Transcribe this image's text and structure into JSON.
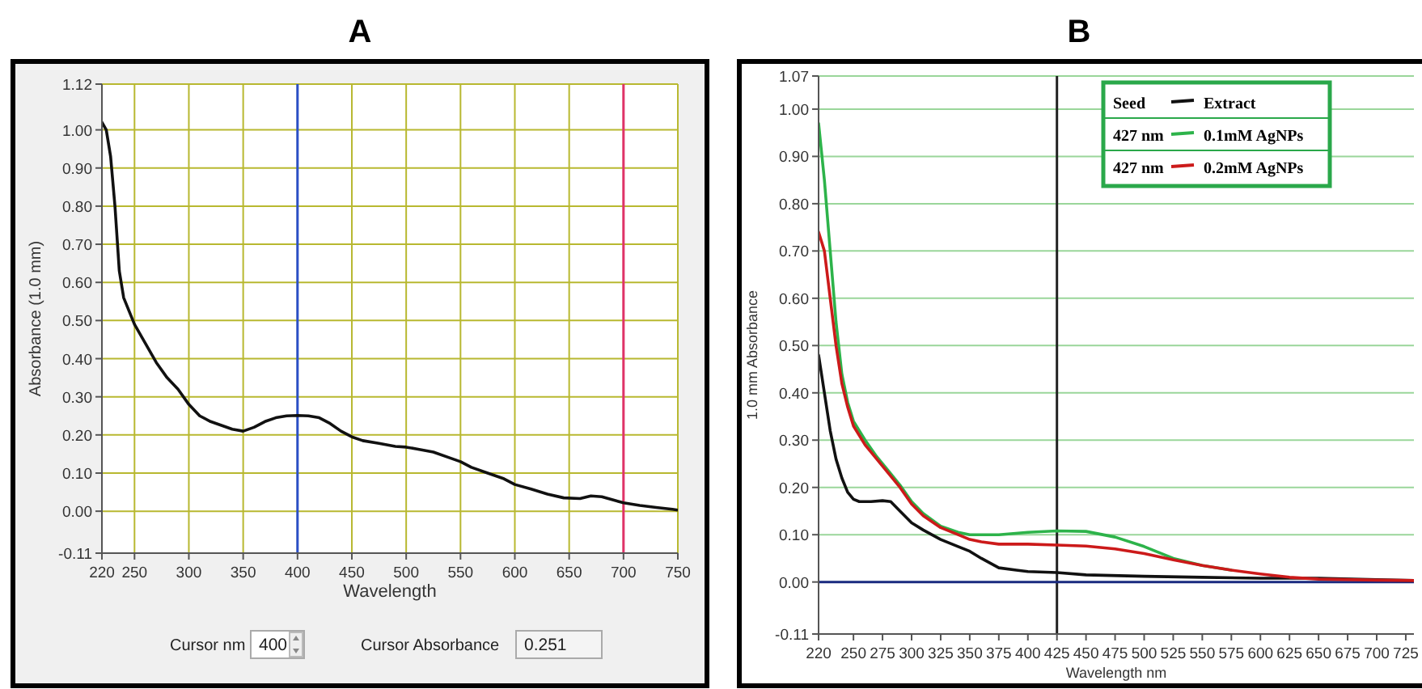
{
  "chart_data": [
    {
      "type": "line",
      "title": "A",
      "xlabel": "Wavelength",
      "ylabel": "Absorbance (1.0 mm)",
      "xlim": [
        220,
        750
      ],
      "xticks": [
        220,
        250,
        300,
        350,
        400,
        450,
        500,
        550,
        600,
        650,
        700,
        750
      ],
      "ylim": [
        -0.11,
        1.12
      ],
      "yticks": [
        -0.11,
        {
          "value": 0,
          "label": "0.00"
        },
        {
          "value": 0.1,
          "label": "0.10"
        },
        {
          "value": 0.2,
          "label": "0.20"
        },
        {
          "value": 0.3,
          "label": "0.30"
        },
        {
          "value": 0.4,
          "label": "0.40"
        },
        {
          "value": 0.5,
          "label": "0.50"
        },
        {
          "value": 0.6,
          "label": "0.60"
        },
        {
          "value": 0.7,
          "label": "0.70"
        },
        {
          "value": 0.8,
          "label": "0.80"
        },
        {
          "value": 0.9,
          "label": "0.90"
        },
        {
          "value": 1,
          "label": "1.00"
        },
        1.12
      ],
      "grid": true,
      "ref_lines": [
        {
          "axis": "x",
          "value": 400,
          "color": "#2a4fc8"
        },
        {
          "axis": "x",
          "value": 700,
          "color": "#e0336a"
        }
      ],
      "annotations": [
        "Cursor nm",
        "400",
        "Cursor Absorbance",
        "0.251"
      ],
      "series": [
        {
          "color": "#111111",
          "x": [
            220,
            224,
            228,
            232,
            236,
            240,
            250,
            260,
            270,
            280,
            290,
            300,
            310,
            320,
            330,
            340,
            350,
            360,
            370,
            380,
            390,
            400,
            410,
            420,
            430,
            440,
            450,
            460,
            475,
            490,
            500,
            510,
            525,
            540,
            550,
            560,
            575,
            590,
            600,
            615,
            630,
            645,
            660,
            670,
            680,
            690,
            700,
            715,
            730,
            745,
            750
          ],
          "values": [
            1.02,
            1.0,
            0.93,
            0.8,
            0.63,
            0.56,
            0.49,
            0.44,
            0.39,
            0.35,
            0.32,
            0.28,
            0.25,
            0.235,
            0.225,
            0.215,
            0.21,
            0.22,
            0.235,
            0.245,
            0.25,
            0.251,
            0.25,
            0.245,
            0.23,
            0.21,
            0.195,
            0.185,
            0.178,
            0.17,
            0.168,
            0.163,
            0.155,
            0.14,
            0.13,
            0.115,
            0.1,
            0.085,
            0.07,
            0.058,
            0.045,
            0.035,
            0.033,
            0.04,
            0.038,
            0.03,
            0.022,
            0.015,
            0.01,
            0.005,
            0.003
          ]
        }
      ]
    },
    {
      "type": "line",
      "title": "B",
      "xlabel": "Wavelength nm",
      "ylabel": "1.0 mm Absorbance",
      "xlim": [
        220,
        732
      ],
      "xticks": [
        220,
        250,
        275,
        300,
        325,
        350,
        375,
        400,
        425,
        450,
        475,
        500,
        525,
        550,
        575,
        600,
        625,
        650,
        675,
        700,
        725
      ],
      "ylim": [
        -0.11,
        1.07
      ],
      "yticks": [
        -0.11,
        {
          "value": 0,
          "label": "0.00"
        },
        {
          "value": 0.1,
          "label": "0.10"
        },
        {
          "value": 0.2,
          "label": "0.20"
        },
        {
          "value": 0.3,
          "label": "0.30"
        },
        {
          "value": 0.4,
          "label": "0.40"
        },
        {
          "value": 0.5,
          "label": "0.50"
        },
        {
          "value": 0.6,
          "label": "0.60"
        },
        {
          "value": 0.7,
          "label": "0.70"
        },
        {
          "value": 0.8,
          "label": "0.80"
        },
        {
          "value": 0.9,
          "label": "0.90"
        },
        {
          "value": 1,
          "label": "1.00"
        },
        1.07
      ],
      "grid": "y",
      "legend": "top right",
      "ref_lines": [
        {
          "axis": "x",
          "value": 425,
          "color": "#222222"
        },
        {
          "axis": "y",
          "value": 0,
          "color": "#1a2a80"
        }
      ],
      "annotations": [
        "Seed",
        "427 nm",
        "427 nm"
      ],
      "series": [
        {
          "name": "Extract",
          "color": "#111111",
          "x": [
            220,
            225,
            230,
            235,
            240,
            245,
            250,
            255,
            265,
            275,
            282,
            290,
            300,
            310,
            325,
            340,
            350,
            360,
            375,
            390,
            400,
            425,
            450,
            500,
            550,
            600,
            650,
            700,
            732
          ],
          "values": [
            0.48,
            0.4,
            0.32,
            0.26,
            0.22,
            0.19,
            0.175,
            0.17,
            0.17,
            0.172,
            0.17,
            0.15,
            0.125,
            0.11,
            0.09,
            0.075,
            0.065,
            0.05,
            0.03,
            0.025,
            0.022,
            0.02,
            0.015,
            0.012,
            0.01,
            0.008,
            0.008,
            0.005,
            0.003
          ]
        },
        {
          "name": "0.1mM AgNPs",
          "color": "#2db34a",
          "x": [
            220,
            225,
            230,
            235,
            240,
            245,
            250,
            260,
            270,
            280,
            290,
            300,
            310,
            325,
            340,
            350,
            375,
            400,
            425,
            450,
            475,
            500,
            525,
            550,
            575
          ],
          "values": [
            0.97,
            0.85,
            0.7,
            0.55,
            0.44,
            0.38,
            0.34,
            0.3,
            0.265,
            0.235,
            0.205,
            0.17,
            0.145,
            0.118,
            0.105,
            0.1,
            0.1,
            0.105,
            0.108,
            0.107,
            0.095,
            0.075,
            0.05,
            0.035,
            0.025
          ]
        },
        {
          "name": "0.2mM AgNPs",
          "color": "#cc1a1a",
          "x": [
            220,
            225,
            230,
            235,
            240,
            245,
            250,
            260,
            270,
            280,
            290,
            300,
            310,
            325,
            340,
            350,
            360,
            375,
            400,
            425,
            450,
            475,
            500,
            525,
            550,
            575,
            600,
            625,
            650,
            700,
            732
          ],
          "values": [
            0.74,
            0.7,
            0.6,
            0.5,
            0.42,
            0.37,
            0.33,
            0.29,
            0.26,
            0.23,
            0.2,
            0.165,
            0.14,
            0.115,
            0.1,
            0.09,
            0.085,
            0.08,
            0.08,
            0.078,
            0.076,
            0.07,
            0.06,
            0.047,
            0.035,
            0.025,
            0.017,
            0.01,
            0.006,
            0.004,
            0.003
          ]
        }
      ]
    }
  ]
}
